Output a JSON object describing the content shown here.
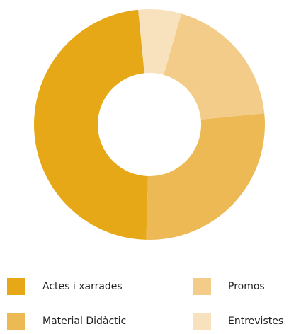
{
  "chart_data": {
    "type": "donut",
    "categories": [
      "Actes i xarrades",
      "Material Didàctic",
      "Promos",
      "Entrevistes"
    ],
    "values": [
      48,
      27,
      19,
      6
    ],
    "colors": [
      "#e6a817",
      "#edb955",
      "#f3cc8a",
      "#f8e1bd"
    ]
  }
}
